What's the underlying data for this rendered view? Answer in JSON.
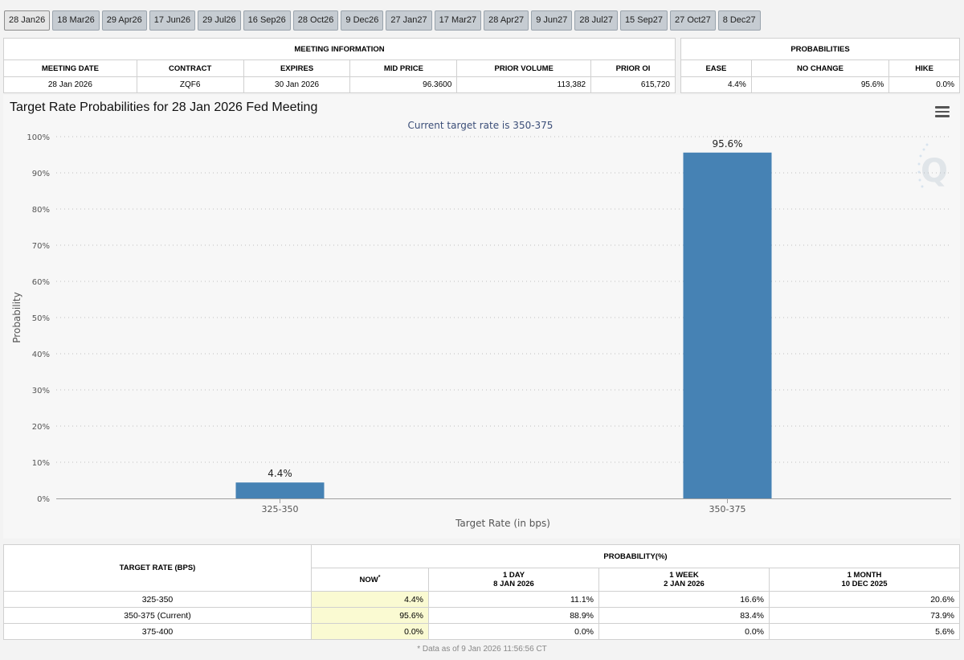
{
  "tabs": [
    "28 Jan26",
    "18 Mar26",
    "29 Apr26",
    "17 Jun26",
    "29 Jul26",
    "16 Sep26",
    "28 Oct26",
    "9 Dec26",
    "27 Jan27",
    "17 Mar27",
    "28 Apr27",
    "9 Jun27",
    "28 Jul27",
    "15 Sep27",
    "27 Oct27",
    "8 Dec27"
  ],
  "active_tab": "28 Jan26",
  "meeting_info": {
    "title": "MEETING INFORMATION",
    "headers": {
      "meeting_date": "MEETING DATE",
      "contract": "CONTRACT",
      "expires": "EXPIRES",
      "mid_price": "MID PRICE",
      "prior_volume": "PRIOR VOLUME",
      "prior_oi": "PRIOR OI"
    },
    "values": {
      "meeting_date": "28 Jan 2026",
      "contract": "ZQF6",
      "expires": "30 Jan 2026",
      "mid_price": "96.3600",
      "prior_volume": "113,382",
      "prior_oi": "615,720"
    }
  },
  "probabilities": {
    "title": "PROBABILITIES",
    "headers": {
      "ease": "EASE",
      "no_change": "NO CHANGE",
      "hike": "HIKE"
    },
    "values": {
      "ease": "4.4%",
      "no_change": "95.6%",
      "hike": "0.0%"
    }
  },
  "chart_data": {
    "type": "bar",
    "title": "Target Rate Probabilities for 28 Jan 2026 Fed Meeting",
    "subtitle": "Current target rate is 350-375",
    "categories": [
      "325-350",
      "350-375"
    ],
    "values": [
      4.4,
      95.6
    ],
    "data_labels": [
      "4.4%",
      "95.6%"
    ],
    "xlabel": "Target Rate (in bps)",
    "ylabel": "Probability",
    "ylim": [
      0,
      100
    ],
    "yticks": [
      "0%",
      "10%",
      "20%",
      "30%",
      "40%",
      "50%",
      "60%",
      "70%",
      "80%",
      "90%",
      "100%"
    ],
    "bar_color": "#4682b4",
    "grid": "dotted horizontal"
  },
  "bottom_table": {
    "target_header": "TARGET RATE (BPS)",
    "prob_header": "PROBABILITY(%)",
    "now_label": "NOW",
    "now_mark": "*",
    "cols": [
      {
        "title": "1 DAY",
        "date": "8 JAN 2026"
      },
      {
        "title": "1 WEEK",
        "date": "2 JAN 2026"
      },
      {
        "title": "1 MONTH",
        "date": "10 DEC 2025"
      }
    ],
    "rows": [
      {
        "rate": "325-350",
        "now": "4.4%",
        "day": "11.1%",
        "week": "16.6%",
        "month": "20.6%"
      },
      {
        "rate": "350-375 (Current)",
        "now": "95.6%",
        "day": "88.9%",
        "week": "83.4%",
        "month": "73.9%"
      },
      {
        "rate": "375-400",
        "now": "0.0%",
        "day": "0.0%",
        "week": "0.0%",
        "month": "5.6%"
      }
    ]
  },
  "footnote": "* Data as of 9 Jan 2026 11:56:56 CT"
}
